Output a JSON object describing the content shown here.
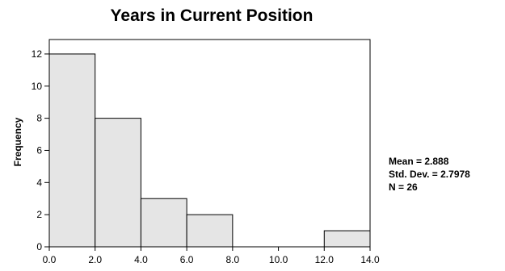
{
  "chart_data": {
    "type": "bar",
    "title": "Years in Current Position",
    "xlabel": "",
    "ylabel": "Frequency",
    "bin_edges": [
      0,
      2,
      4,
      6,
      8,
      10,
      12,
      14
    ],
    "values": [
      12,
      8,
      3,
      2,
      0,
      0,
      1
    ],
    "xlim": [
      0,
      14
    ],
    "ylim": [
      0,
      12.9
    ],
    "x_ticks": [
      "0.0",
      "2.0",
      "4.0",
      "6.0",
      "8.0",
      "10.0",
      "12.0",
      "14.0"
    ],
    "y_ticks": [
      "0",
      "2",
      "4",
      "6",
      "8",
      "10",
      "12"
    ],
    "bar_color": "#e5e5e5",
    "grid": false,
    "stats": [
      "Mean = 2.888",
      "Std. Dev. = 2.7978",
      "N = 26"
    ]
  }
}
